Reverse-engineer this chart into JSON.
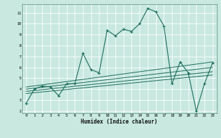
{
  "xlabel": "Humidex (Indice chaleur)",
  "xlim": [
    -0.5,
    23.5
  ],
  "ylim": [
    1.8,
    11.8
  ],
  "yticks": [
    2,
    3,
    4,
    5,
    6,
    7,
    8,
    9,
    10,
    11
  ],
  "xticks": [
    0,
    1,
    2,
    3,
    4,
    5,
    6,
    7,
    8,
    9,
    10,
    11,
    12,
    13,
    14,
    15,
    16,
    17,
    18,
    19,
    20,
    21,
    22,
    23
  ],
  "bg_color": "#c8e8e0",
  "grid_color": "#ffffff",
  "line_color": "#1a6b5a",
  "main_x": [
    0,
    1,
    2,
    3,
    4,
    5,
    6,
    7,
    8,
    9,
    10,
    11,
    12,
    13,
    14,
    15,
    16,
    17,
    18,
    19,
    20,
    21,
    22,
    23
  ],
  "main_y": [
    2.7,
    4.0,
    4.3,
    4.2,
    3.4,
    4.5,
    4.5,
    7.3,
    5.8,
    5.5,
    9.4,
    8.9,
    9.5,
    9.3,
    10.0,
    11.4,
    11.1,
    9.8,
    4.5,
    6.5,
    5.5,
    2.0,
    4.5,
    6.4
  ],
  "line1_x": [
    0,
    23
  ],
  "line1_y": [
    3.6,
    5.3
  ],
  "line2_x": [
    0,
    23
  ],
  "line2_y": [
    3.8,
    5.6
  ],
  "line3_x": [
    0,
    23
  ],
  "line3_y": [
    4.0,
    6.0
  ],
  "line4_x": [
    0,
    23
  ],
  "line4_y": [
    4.2,
    6.5
  ]
}
